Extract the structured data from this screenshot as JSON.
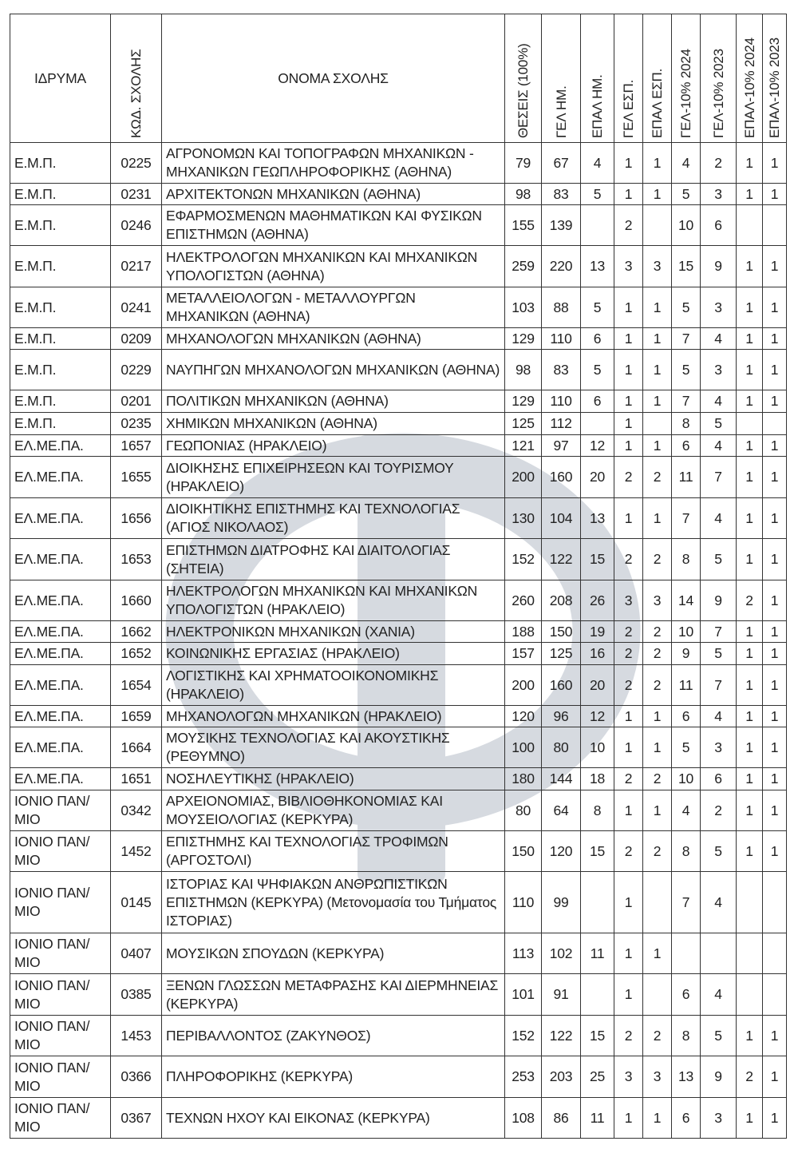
{
  "watermark_color": "#d6dae0",
  "table": {
    "headers": [
      "ΙΔΡΥΜΑ",
      "ΚΩΔ. ΣΧΟΛΗΣ",
      "ΟΝΟΜΑ ΣΧΟΛΗΣ",
      "ΘΕΣΕΙΣ  (100%)",
      "ΓΕΛ ΗΜ.",
      "ΕΠΑΛ ΗΜ.",
      "ΓΕΛ ΕΣΠ.",
      "ΕΠΑΛ ΕΣΠ.",
      "ΓΕΛ-10% 2024",
      "ΓΕΛ-10% 2023",
      "ΕΠΑΛ-10% 2024",
      "ΕΠΑΛ-10% 2023"
    ],
    "rows": [
      [
        "Ε.Μ.Π.",
        "0225",
        "ΑΓΡΟΝΟΜΩΝ ΚΑΙ ΤΟΠΟΓΡΑΦΩΝ ΜΗΧΑΝΙΚΩΝ - ΜΗΧΑΝΙΚΩΝ ΓΕΩΠΛΗΡΟΦΟΡΙΚΗΣ (ΑΘΗΝΑ)",
        "79",
        "67",
        "4",
        "1",
        "1",
        "4",
        "2",
        "1",
        "1"
      ],
      [
        "Ε.Μ.Π.",
        "0231",
        "ΑΡΧΙΤΕΚΤΟΝΩΝ ΜΗΧΑΝΙΚΩΝ (ΑΘΗΝΑ)",
        "98",
        "83",
        "5",
        "1",
        "1",
        "5",
        "3",
        "1",
        "1"
      ],
      [
        "Ε.Μ.Π.",
        "0246",
        "ΕΦΑΡΜΟΣΜΕΝΩΝ ΜΑΘΗΜΑΤΙΚΩΝ ΚΑΙ ΦΥΣΙΚΩΝ ΕΠΙΣΤΗΜΩΝ (ΑΘΗΝΑ)",
        "155",
        "139",
        "",
        "2",
        "",
        "10",
        "6",
        "",
        ""
      ],
      [
        "Ε.Μ.Π.",
        "0217",
        "ΗΛΕΚΤΡΟΛΟΓΩΝ ΜΗΧΑΝΙΚΩΝ ΚΑΙ ΜΗΧΑΝΙΚΩΝ ΥΠΟΛΟΓΙΣΤΩΝ (ΑΘΗΝΑ)",
        "259",
        "220",
        "13",
        "3",
        "3",
        "15",
        "9",
        "1",
        "1"
      ],
      [
        "Ε.Μ.Π.",
        "0241",
        "ΜΕΤΑΛΛΕΙΟΛΟΓΩΝ - ΜΕΤΑΛΛΟΥΡΓΩΝ ΜΗΧΑΝΙΚΩΝ (ΑΘΗΝΑ)",
        "103",
        "88",
        "5",
        "1",
        "1",
        "5",
        "3",
        "1",
        "1"
      ],
      [
        "Ε.Μ.Π.",
        "0209",
        "ΜΗΧΑΝΟΛΟΓΩΝ ΜΗΧΑΝΙΚΩΝ (ΑΘΗΝΑ)",
        "129",
        "110",
        "6",
        "1",
        "1",
        "7",
        "4",
        "1",
        "1"
      ],
      [
        "Ε.Μ.Π.",
        "0229",
        "ΝΑΥΠΗΓΩΝ ΜΗΧΑΝΟΛΟΓΩΝ ΜΗΧΑΝΙΚΩΝ (ΑΘΗΝΑ)",
        "98",
        "83",
        "5",
        "1",
        "1",
        "5",
        "3",
        "1",
        "1"
      ],
      [
        "Ε.Μ.Π.",
        "0201",
        "ΠΟΛΙΤΙΚΩΝ ΜΗΧΑΝΙΚΩΝ (ΑΘΗΝΑ)",
        "129",
        "110",
        "6",
        "1",
        "1",
        "7",
        "4",
        "1",
        "1"
      ],
      [
        "Ε.Μ.Π.",
        "0235",
        "ΧΗΜΙΚΩΝ ΜΗΧΑΝΙΚΩΝ (ΑΘΗΝΑ)",
        "125",
        "112",
        "",
        "1",
        "",
        "8",
        "5",
        "",
        ""
      ],
      [
        "ΕΛ.ΜΕ.ΠΑ.",
        "1657",
        "ΓΕΩΠΟΝΙΑΣ (ΗΡΑΚΛΕΙΟ)",
        "121",
        "97",
        "12",
        "1",
        "1",
        "6",
        "4",
        "1",
        "1"
      ],
      [
        "ΕΛ.ΜΕ.ΠΑ.",
        "1655",
        "ΔΙΟΙΚΗΣΗΣ ΕΠΙΧΕΙΡΗΣΕΩΝ ΚΑΙ ΤΟΥΡΙΣΜΟΥ (ΗΡΑΚΛΕΙΟ)",
        "200",
        "160",
        "20",
        "2",
        "2",
        "11",
        "7",
        "1",
        "1"
      ],
      [
        "ΕΛ.ΜΕ.ΠΑ.",
        "1656",
        "ΔΙΟΙΚΗΤΙΚΗΣ ΕΠΙΣΤΗΜΗΣ ΚΑΙ ΤΕΧΝΟΛΟΓΙΑΣ (ΑΓΙΟΣ ΝΙΚΟΛΑΟΣ)",
        "130",
        "104",
        "13",
        "1",
        "1",
        "7",
        "4",
        "1",
        "1"
      ],
      [
        "ΕΛ.ΜΕ.ΠΑ.",
        "1653",
        "ΕΠΙΣΤΗΜΩΝ ΔΙΑΤΡΟΦΗΣ ΚΑΙ ΔΙΑΙΤΟΛΟΓΙΑΣ (ΣΗΤΕΙΑ)",
        "152",
        "122",
        "15",
        "2",
        "2",
        "8",
        "5",
        "1",
        "1"
      ],
      [
        "ΕΛ.ΜΕ.ΠΑ.",
        "1660",
        "ΗΛΕΚΤΡΟΛΟΓΩΝ ΜΗΧΑΝΙΚΩΝ ΚΑΙ ΜΗΧΑΝΙΚΩΝ ΥΠΟΛΟΓΙΣΤΩΝ (ΗΡΑΚΛΕΙΟ)",
        "260",
        "208",
        "26",
        "3",
        "3",
        "14",
        "9",
        "2",
        "1"
      ],
      [
        "ΕΛ.ΜΕ.ΠΑ.",
        "1662",
        "ΗΛΕΚΤΡΟΝΙΚΩΝ ΜΗΧΑΝΙΚΩΝ (ΧΑΝΙΑ)",
        "188",
        "150",
        "19",
        "2",
        "2",
        "10",
        "7",
        "1",
        "1"
      ],
      [
        "ΕΛ.ΜΕ.ΠΑ.",
        "1652",
        "ΚΟΙΝΩΝΙΚΗΣ ΕΡΓΑΣΙΑΣ (ΗΡΑΚΛΕΙΟ)",
        "157",
        "125",
        "16",
        "2",
        "2",
        "9",
        "5",
        "1",
        "1"
      ],
      [
        "ΕΛ.ΜΕ.ΠΑ.",
        "1654",
        "ΛΟΓΙΣΤΙΚΗΣ ΚΑΙ ΧΡΗΜΑΤΟΟΙΚΟΝΟΜΙΚΗΣ (ΗΡΑΚΛΕΙΟ)",
        "200",
        "160",
        "20",
        "2",
        "2",
        "11",
        "7",
        "1",
        "1"
      ],
      [
        "ΕΛ.ΜΕ.ΠΑ.",
        "1659",
        "ΜΗΧΑΝΟΛΟΓΩΝ ΜΗΧΑΝΙΚΩΝ (ΗΡΑΚΛΕΙΟ)",
        "120",
        "96",
        "12",
        "1",
        "1",
        "6",
        "4",
        "1",
        "1"
      ],
      [
        "ΕΛ.ΜΕ.ΠΑ.",
        "1664",
        "ΜΟΥΣΙΚΗΣ ΤΕΧΝΟΛΟΓΙΑΣ ΚΑΙ ΑΚΟΥΣΤΙΚΗΣ (ΡΕΘΥΜΝΟ)",
        "100",
        "80",
        "10",
        "1",
        "1",
        "5",
        "3",
        "1",
        "1"
      ],
      [
        "ΕΛ.ΜΕ.ΠΑ.",
        "1651",
        "ΝΟΣΗΛΕΥΤΙΚΗΣ (ΗΡΑΚΛΕΙΟ)",
        "180",
        "144",
        "18",
        "2",
        "2",
        "10",
        "6",
        "1",
        "1"
      ],
      [
        "ΙΟΝΙΟ ΠΑΝ/ ΜΙΟ",
        "0342",
        "ΑΡΧΕΙΟΝΟΜΙΑΣ, ΒΙΒΛΙΟΘΗΚΟΝΟΜΙΑΣ ΚΑΙ ΜΟΥΣΕΙΟΛΟΓΙΑΣ (ΚΕΡΚΥΡΑ)",
        "80",
        "64",
        "8",
        "1",
        "1",
        "4",
        "2",
        "1",
        "1"
      ],
      [
        "ΙΟΝΙΟ ΠΑΝ/ ΜΙΟ",
        "1452",
        "ΕΠΙΣΤΗΜΗΣ ΚΑΙ ΤΕΧΝΟΛΟΓΙΑΣ ΤΡΟΦΙΜΩΝ (ΑΡΓΟΣΤΟΛΙ)",
        "150",
        "120",
        "15",
        "2",
        "2",
        "8",
        "5",
        "1",
        "1"
      ],
      [
        "ΙΟΝΙΟ ΠΑΝ/ ΜΙΟ",
        "0145",
        "ΙΣΤΟΡΙΑΣ ΚΑΙ ΨΗΦΙΑΚΩΝ ΑΝΘΡΩΠΙΣΤΙΚΩΝ ΕΠΙΣΤΗΜΩΝ (ΚΕΡΚΥΡΑ) (Μετονομασία του Τμήματος ΙΣΤΟΡΙΑΣ)",
        "110",
        "99",
        "",
        "1",
        "",
        "7",
        "4",
        "",
        ""
      ],
      [
        "ΙΟΝΙΟ ΠΑΝ/ ΜΙΟ",
        "0407",
        "ΜΟΥΣΙΚΩΝ ΣΠΟΥΔΩΝ (ΚΕΡΚΥΡΑ)",
        "113",
        "102",
        "11",
        "1",
        "1",
        "",
        "",
        "",
        ""
      ],
      [
        "ΙΟΝΙΟ ΠΑΝ/ ΜΙΟ",
        "0385",
        "ΞΕΝΩΝ ΓΛΩΣΣΩΝ ΜΕΤΑΦΡΑΣΗΣ ΚΑΙ ΔΙΕΡΜΗΝΕΙΑΣ (ΚΕΡΚΥΡΑ)",
        "101",
        "91",
        "",
        "1",
        "",
        "6",
        "4",
        "",
        ""
      ],
      [
        "ΙΟΝΙΟ ΠΑΝ/ ΜΙΟ",
        "1453",
        "ΠΕΡΙΒΑΛΛΟΝΤΟΣ (ΖΑΚΥΝΘΟΣ)",
        "152",
        "122",
        "15",
        "2",
        "2",
        "8",
        "5",
        "1",
        "1"
      ],
      [
        "ΙΟΝΙΟ ΠΑΝ/ ΜΙΟ",
        "0366",
        "ΠΛΗΡΟΦΟΡΙΚΗΣ (ΚΕΡΚΥΡΑ)",
        "253",
        "203",
        "25",
        "3",
        "3",
        "13",
        "9",
        "2",
        "1"
      ],
      [
        "ΙΟΝΙΟ ΠΑΝ/ ΜΙΟ",
        "0367",
        "ΤΕΧΝΩΝ ΗΧΟΥ ΚΑΙ ΕΙΚΟΝΑΣ (ΚΕΡΚΥΡΑ)",
        "108",
        "86",
        "11",
        "1",
        "1",
        "6",
        "3",
        "1",
        "1"
      ]
    ]
  }
}
